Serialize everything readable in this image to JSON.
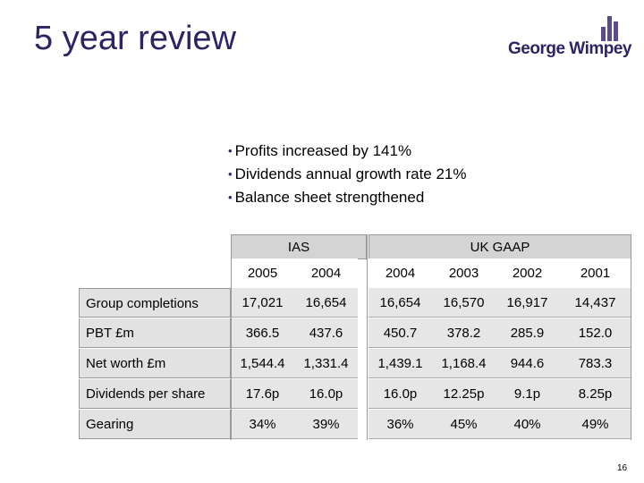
{
  "slide": {
    "title": "5 year review",
    "page_number": "16",
    "logo_text": "George Wimpey",
    "brand_color": "#2d2466"
  },
  "bullets": [
    "Profits increased by 141%",
    "Dividends annual growth rate 21%",
    "Balance sheet strengthened"
  ],
  "table": {
    "groups": [
      "IAS",
      "UK GAAP"
    ],
    "years": [
      "2005",
      "2004",
      "2004",
      "2003",
      "2002",
      "2001"
    ],
    "rows": [
      {
        "label": "Group completions",
        "values": [
          "17,021",
          "16,654",
          "16,654",
          "16,570",
          "16,917",
          "14,437"
        ]
      },
      {
        "label": "PBT £m",
        "values": [
          "366.5",
          "437.6",
          "450.7",
          "378.2",
          "285.9",
          "152.0"
        ]
      },
      {
        "label": "Net worth £m",
        "values": [
          "1,544.4",
          "1,331.4",
          "1,439.1",
          "1,168.4",
          "944.6",
          "783.3"
        ]
      },
      {
        "label": "Dividends per share",
        "values": [
          "17.6p",
          "16.0p",
          "16.0p",
          "12.25p",
          "9.1p",
          "8.25p"
        ]
      },
      {
        "label": "Gearing",
        "values": [
          "34%",
          "39%",
          "36%",
          "45%",
          "40%",
          "49%"
        ]
      }
    ]
  }
}
